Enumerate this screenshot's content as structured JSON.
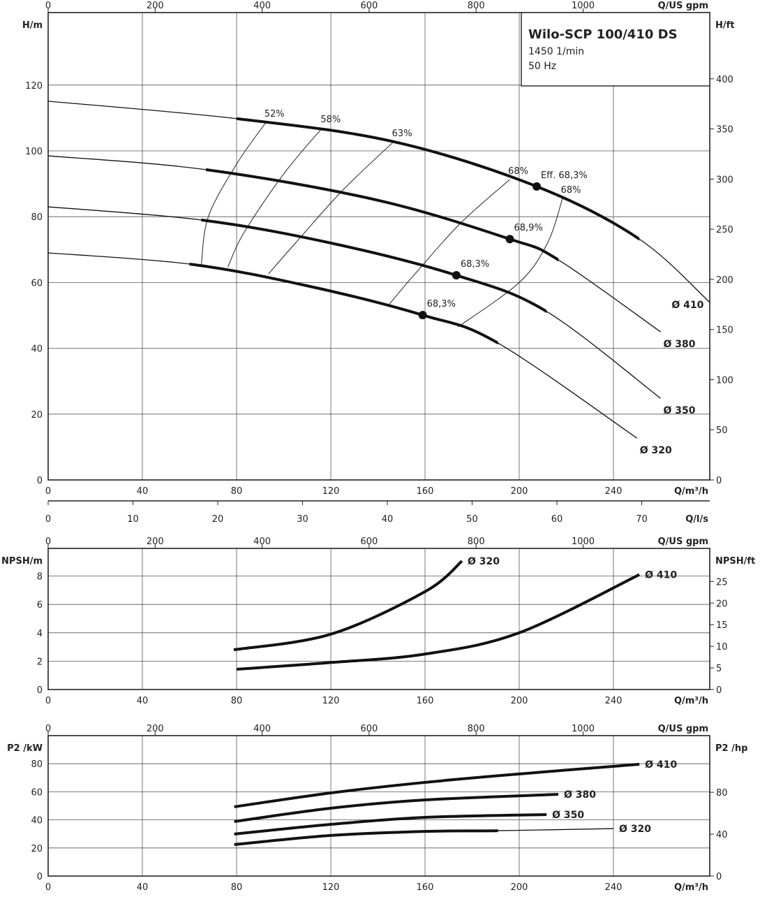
{
  "chart_data": [
    {
      "type": "line",
      "id": "head",
      "title": "Wilo-SCP 100/410 DS",
      "subtitle": [
        "1450 1/min",
        "50 Hz"
      ],
      "xlabel": "Q/m³/h",
      "ylabel": "H/m",
      "ylabel_right": "H/ft",
      "xlabel_top": "Q/US gpm",
      "xlabel_secondary": "Q/l/s",
      "xlim": [
        0,
        281
      ],
      "ylim": [
        0,
        142
      ],
      "xticks": [
        0,
        40,
        80,
        120,
        160,
        200,
        240
      ],
      "yticks": [
        0,
        20,
        40,
        60,
        80,
        100,
        120
      ],
      "yticks_right": [
        0,
        50,
        100,
        150,
        200,
        250,
        300,
        350,
        400
      ],
      "xticks_top": [
        0,
        200,
        400,
        600,
        800,
        1000
      ],
      "xticks_secondary": [
        0,
        10,
        20,
        30,
        40,
        50,
        60,
        70
      ],
      "grid": true,
      "series": [
        {
          "name": "Ø 410",
          "points": [
            [
              0,
              115.1
            ],
            [
              80,
              109.8
            ],
            [
              146.7,
              102.8
            ],
            [
              207.4,
              89.2
            ],
            [
              251,
              73.2
            ],
            [
              281,
              53.9
            ]
          ],
          "thick": [
            80,
            251
          ]
        },
        {
          "name": "Ø 380",
          "points": [
            [
              0,
              98.5
            ],
            [
              67,
              94.3
            ],
            [
              140,
              85
            ],
            [
              196,
              73.2
            ],
            [
              216.6,
              66.9
            ],
            [
              260,
              45
            ]
          ],
          "thick": [
            67,
            216.6
          ]
        },
        {
          "name": "Ø 350",
          "points": [
            [
              0,
              83
            ],
            [
              65,
              79
            ],
            [
              120,
              72
            ],
            [
              173.3,
              62.2
            ],
            [
              211.6,
              51.2
            ],
            [
              260,
              24.8
            ]
          ],
          "thick": [
            65,
            211.6
          ]
        },
        {
          "name": "Ø 320",
          "points": [
            [
              0,
              69
            ],
            [
              60,
              65.6
            ],
            [
              110,
              59
            ],
            [
              159,
              50.1
            ],
            [
              191,
              41.6
            ],
            [
              250,
              12.7
            ]
          ],
          "thick": [
            60,
            191
          ]
        }
      ],
      "efficiency_lines": [
        {
          "label": "52%",
          "points": [
            [
              92.5,
              108.7
            ],
            [
              80,
              96
            ],
            [
              68,
              80
            ],
            [
              65,
              65.2
            ]
          ]
        },
        {
          "label": "58%",
          "points": [
            [
              116.4,
              107
            ],
            [
              100,
              93
            ],
            [
              83,
              75
            ],
            [
              76.3,
              64.7
            ]
          ]
        },
        {
          "label": "63%",
          "points": [
            [
              146.7,
              102.8
            ],
            [
              125,
              88
            ],
            [
              105,
              72
            ],
            [
              93.5,
              62.6
            ]
          ]
        },
        {
          "label": "68%",
          "points": [
            [
              196,
              91.3
            ],
            [
              175,
              78
            ],
            [
              155,
              62
            ],
            [
              144.6,
              53.2
            ]
          ]
        },
        {
          "label": "68%",
          "points": [
            [
              218.4,
              85.6
            ],
            [
              212,
              72
            ],
            [
              200,
              60
            ],
            [
              174,
              46.5
            ]
          ]
        }
      ],
      "bep_points": [
        {
          "label": "Eff. 68,3%",
          "q": 207.4,
          "h": 89.2
        },
        {
          "label": "68,9%",
          "q": 196,
          "h": 73.2
        },
        {
          "label": "68,3%",
          "q": 173.3,
          "h": 62.2
        },
        {
          "label": "68,3%",
          "q": 159,
          "h": 50.1
        }
      ]
    },
    {
      "type": "line",
      "id": "npsh",
      "xlabel": "Q/m³/h",
      "ylabel": "NPSH/m",
      "ylabel_right": "NPSH/ft",
      "xlabel_top": "Q/US gpm",
      "xlim": [
        0,
        281
      ],
      "ylim": [
        0,
        9.8
      ],
      "xticks": [
        0,
        40,
        80,
        120,
        160,
        200,
        240
      ],
      "yticks": [
        0,
        2,
        4,
        6,
        8
      ],
      "yticks_right": [
        0,
        5,
        10,
        15,
        20,
        25
      ],
      "xticks_top": [
        0,
        200,
        400,
        600,
        800,
        1000
      ],
      "grid": true,
      "series": [
        {
          "name": "Ø 320",
          "points": [
            [
              78.8,
              2.8
            ],
            [
              120,
              3.9
            ],
            [
              160,
              6.9
            ],
            [
              175.7,
              9.06
            ]
          ]
        },
        {
          "name": "Ø 410",
          "points": [
            [
              80,
              1.43
            ],
            [
              120,
              1.9
            ],
            [
              160,
              2.5
            ],
            [
              200,
              4.0
            ],
            [
              251,
              8.1
            ]
          ]
        }
      ]
    },
    {
      "type": "line",
      "id": "power",
      "xlabel": "Q/m³/h",
      "ylabel": "P2 /kW",
      "ylabel_right": "P2 /hp",
      "xlabel_top": "Q/US gpm",
      "xlim": [
        0,
        281
      ],
      "ylim": [
        0,
        100
      ],
      "xticks": [
        0,
        40,
        80,
        120,
        160,
        200,
        240
      ],
      "yticks": [
        0,
        20,
        40,
        60,
        80
      ],
      "yticks_right": [
        0,
        40,
        80
      ],
      "xticks_top": [
        0,
        200,
        400,
        600,
        800,
        1000
      ],
      "grid": true,
      "series": [
        {
          "name": "Ø 410",
          "points": [
            [
              79,
              49.3
            ],
            [
              120,
              59.2
            ],
            [
              160,
              66.7
            ],
            [
              200,
              72.7
            ],
            [
              251,
              79.6
            ]
          ]
        },
        {
          "name": "Ø 380",
          "points": [
            [
              79,
              38.8
            ],
            [
              120,
              48.3
            ],
            [
              160,
              54.2
            ],
            [
              216.6,
              58.2
            ]
          ]
        },
        {
          "name": "Ø 350",
          "points": [
            [
              79,
              29.9
            ],
            [
              120,
              36.8
            ],
            [
              160,
              41.8
            ],
            [
              211.6,
              43.8
            ]
          ]
        },
        {
          "name": "Ø 320",
          "points": [
            [
              79,
              22.4
            ],
            [
              120,
              28.9
            ],
            [
              160,
              31.8
            ],
            [
              191,
              32.3
            ],
            [
              240,
              33.8
            ]
          ],
          "thick": [
            79,
            191
          ]
        }
      ]
    }
  ]
}
